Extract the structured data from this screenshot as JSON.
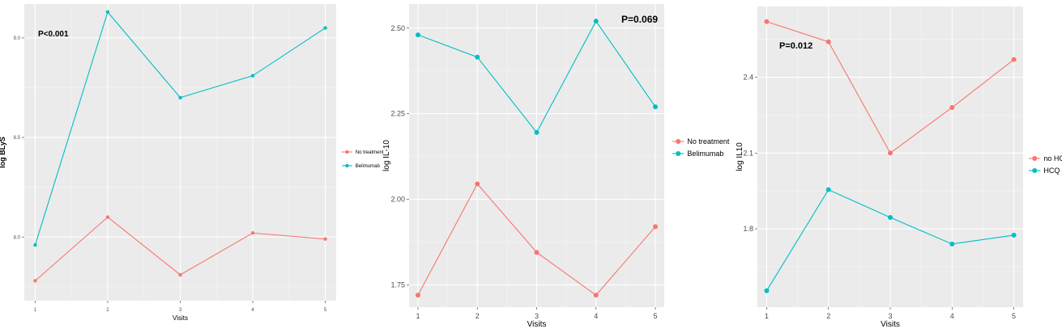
{
  "chart_data": [
    {
      "type": "line",
      "x": [
        1,
        2,
        3,
        4,
        5
      ],
      "xlabel": "Visits",
      "ylabel": "log BLyS",
      "annotation": "P<0.001",
      "ylim": [
        7.68,
        9.17
      ],
      "yticks": [
        8.0,
        8.5,
        9.0
      ],
      "yticklabels": [
        "8.0",
        "8.5",
        "9.0"
      ],
      "grid": true,
      "legend_position": "right",
      "series": [
        {
          "name": "No treatment",
          "color": "#F8766D",
          "values": [
            7.78,
            8.1,
            7.81,
            8.02,
            7.99
          ]
        },
        {
          "name": "Belimumab",
          "color": "#00BFC4",
          "values": [
            7.96,
            9.13,
            8.7,
            8.81,
            9.05
          ]
        }
      ]
    },
    {
      "type": "line",
      "x": [
        1,
        2,
        3,
        4,
        5
      ],
      "xlabel": "Visits",
      "ylabel": "log IL-10",
      "annotation": "P=0.069",
      "ylim": [
        1.685,
        2.57
      ],
      "yticks": [
        1.75,
        2.0,
        2.25,
        2.5
      ],
      "yticklabels": [
        "1.75",
        "2.00",
        "2.25",
        "2.50"
      ],
      "grid": true,
      "legend_position": "right",
      "series": [
        {
          "name": "No treatment",
          "color": "#F8766D",
          "values": [
            1.72,
            2.045,
            1.845,
            1.72,
            1.92
          ]
        },
        {
          "name": "Belimumab",
          "color": "#00BFC4",
          "values": [
            2.48,
            2.415,
            2.195,
            2.52,
            2.27
          ]
        }
      ]
    },
    {
      "type": "line",
      "x": [
        1,
        2,
        3,
        4,
        5
      ],
      "xlabel": "Visits",
      "ylabel": "log IL10",
      "annotation": "P=0.012",
      "ylim": [
        1.49,
        2.68
      ],
      "yticks": [
        1.8,
        2.1,
        2.4
      ],
      "yticklabels": [
        "1.8",
        "2.1",
        "2.4"
      ],
      "grid": true,
      "legend_position": "right",
      "series": [
        {
          "name": "no HCQ",
          "color": "#F8766D",
          "values": [
            2.62,
            2.54,
            2.1,
            2.28,
            2.47
          ]
        },
        {
          "name": "HCQ",
          "color": "#00BFC4",
          "values": [
            1.555,
            1.955,
            1.845,
            1.74,
            1.775
          ]
        }
      ]
    }
  ]
}
